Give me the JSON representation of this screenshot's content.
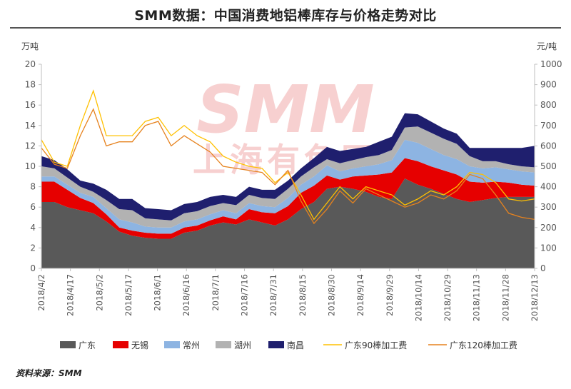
{
  "title": "SMM数据：中国消费地铝棒库存与价格走势对比",
  "source": "资料来源：SMM",
  "watermark": {
    "line1": "SMM",
    "line2": "上海有色网"
  },
  "chart_data": {
    "type": "area",
    "title": "SMM数据：中国消费地铝棒库存与价格走势对比",
    "y_left": {
      "unit": "万吨",
      "min": 0,
      "max": 20,
      "ticks": [
        0,
        2,
        4,
        6,
        8,
        10,
        12,
        14,
        16,
        18,
        20
      ]
    },
    "y_right": {
      "unit": "元/吨",
      "min": 0,
      "max": 1000,
      "ticks": [
        0,
        100,
        200,
        300,
        400,
        500,
        600,
        700,
        800,
        900,
        1000
      ]
    },
    "x_tick_labels": [
      "2018/4/2",
      "2018/4/17",
      "2018/5/2",
      "2018/5/17",
      "2018/6/1",
      "2018/6/16",
      "2018/7/1",
      "2018/7/16",
      "2018/7/31",
      "2018/8/15",
      "2018/8/30",
      "2018/9/14",
      "2018/9/29",
      "2018/10/14",
      "2018/10/29",
      "2018/11/13",
      "2018/11/28",
      "2018/12/13"
    ],
    "legend_position": "bottom",
    "grid": false,
    "stacked_series": [
      {
        "name": "广东",
        "color": "#595959",
        "values": [
          6.5,
          6.5,
          6.0,
          5.7,
          5.4,
          4.6,
          3.6,
          3.2,
          3.0,
          2.9,
          2.9,
          3.5,
          3.7,
          4.2,
          4.5,
          4.3,
          4.8,
          4.5,
          4.2,
          4.8,
          5.8,
          6.5,
          7.8,
          8.0,
          7.8,
          7.5,
          7.0,
          6.8,
          8.8,
          8.2,
          7.8,
          7.3,
          6.8,
          6.5,
          6.7,
          6.9,
          7.0,
          7.0,
          7.0
        ]
      },
      {
        "name": "无锡",
        "color": "#e60000",
        "values": [
          2.0,
          2.0,
          1.7,
          1.2,
          1.0,
          0.7,
          0.4,
          0.5,
          0.5,
          0.5,
          0.5,
          0.5,
          0.5,
          0.5,
          0.6,
          0.5,
          1.0,
          1.0,
          1.2,
          1.3,
          1.6,
          1.6,
          1.3,
          0.7,
          1.2,
          1.6,
          2.2,
          2.6,
          2.0,
          2.3,
          2.2,
          2.3,
          2.4,
          2.0,
          1.7,
          1.6,
          1.4,
          1.2,
          1.1
        ]
      },
      {
        "name": "常州",
        "color": "#8db4e2",
        "values": [
          0.5,
          0.5,
          0.5,
          0.5,
          0.6,
          0.6,
          0.8,
          0.8,
          0.6,
          0.6,
          0.6,
          0.6,
          0.6,
          0.6,
          0.6,
          0.6,
          0.6,
          0.6,
          0.6,
          0.8,
          0.8,
          0.9,
          1.0,
          0.8,
          0.8,
          0.9,
          1.0,
          1.2,
          1.8,
          1.8,
          1.7,
          1.5,
          1.5,
          1.5,
          1.4,
          1.4,
          1.3,
          1.3,
          1.3
        ]
      },
      {
        "name": "湖州",
        "color": "#b2b2b2",
        "values": [
          1.0,
          0.8,
          0.7,
          0.6,
          0.5,
          0.8,
          1.0,
          1.2,
          0.8,
          0.8,
          0.7,
          0.8,
          0.8,
          0.8,
          0.7,
          0.8,
          0.8,
          0.8,
          0.8,
          0.9,
          0.8,
          0.9,
          0.6,
          0.8,
          0.8,
          0.9,
          0.9,
          1.0,
          1.2,
          1.6,
          1.6,
          1.6,
          1.5,
          1.0,
          0.7,
          0.6,
          0.5,
          0.5,
          0.5
        ]
      },
      {
        "name": "南昌",
        "color": "#1f1f6e",
        "values": [
          1.0,
          0.8,
          0.8,
          0.6,
          0.8,
          1.0,
          1.0,
          1.1,
          1.0,
          1.0,
          1.0,
          0.9,
          0.9,
          0.9,
          0.8,
          0.8,
          0.8,
          0.8,
          0.9,
          0.8,
          0.8,
          0.9,
          1.2,
          1.2,
          1.1,
          1.0,
          1.3,
          1.3,
          1.4,
          1.2,
          1.1,
          1.0,
          1.0,
          0.8,
          1.3,
          1.3,
          1.6,
          1.8,
          2.1
        ]
      }
    ],
    "line_series": [
      {
        "name": "广东90棒加工费",
        "color": "#ffc000",
        "axis": "right",
        "values": [
          630,
          520,
          500,
          700,
          870,
          650,
          650,
          650,
          720,
          740,
          650,
          700,
          650,
          620,
          550,
          520,
          500,
          490,
          420,
          470,
          360,
          240,
          320,
          400,
          340,
          400,
          380,
          360,
          310,
          340,
          380,
          360,
          400,
          470,
          460,
          420,
          340,
          330,
          340
        ]
      },
      {
        "name": "广东120棒加工费",
        "color": "#e6821e",
        "axis": "right",
        "values": [
          590,
          510,
          490,
          650,
          780,
          600,
          620,
          620,
          700,
          720,
          600,
          650,
          610,
          570,
          500,
          490,
          480,
          470,
          410,
          480,
          330,
          220,
          290,
          380,
          320,
          390,
          360,
          330,
          300,
          320,
          360,
          340,
          380,
          460,
          440,
          360,
          270,
          250,
          240
        ]
      }
    ]
  }
}
